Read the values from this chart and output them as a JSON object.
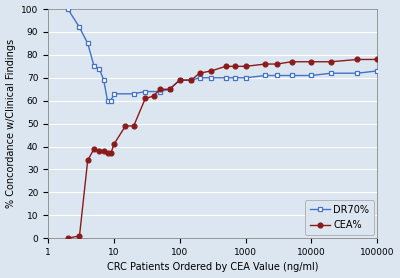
{
  "dr70_x": [
    2,
    3,
    4,
    5,
    6,
    7,
    8,
    9,
    10,
    20,
    30,
    50,
    70,
    100,
    150,
    200,
    300,
    500,
    700,
    1000,
    2000,
    3000,
    5000,
    10000,
    20000,
    50000,
    100000
  ],
  "dr70_y": [
    100,
    92,
    85,
    75,
    74,
    69,
    60,
    60,
    63,
    63,
    64,
    64,
    65,
    69,
    69,
    70,
    70,
    70,
    70,
    70,
    71,
    71,
    71,
    71,
    72,
    72,
    73
  ],
  "cea_x": [
    2,
    3,
    4,
    5,
    6,
    7,
    8,
    9,
    10,
    15,
    20,
    30,
    40,
    50,
    70,
    100,
    150,
    200,
    300,
    500,
    700,
    1000,
    2000,
    3000,
    5000,
    10000,
    20000,
    50000,
    100000
  ],
  "cea_y": [
    0,
    1,
    34,
    39,
    38,
    38,
    37,
    37,
    41,
    49,
    49,
    61,
    62,
    65,
    65,
    69,
    69,
    72,
    73,
    75,
    75,
    75,
    76,
    76,
    77,
    77,
    77,
    78,
    78
  ],
  "dr70_color": "#4472C4",
  "cea_color": "#8B1A1A",
  "dr70_label": "DR70%",
  "cea_label": "CEA%",
  "xlabel": "CRC Patients Ordered by CEA Value (ng/ml)",
  "ylabel": "% Concordance w/Clinical Findings",
  "xlim": [
    1,
    100000
  ],
  "ylim": [
    0,
    100
  ],
  "yticks": [
    0,
    10,
    20,
    30,
    40,
    50,
    60,
    70,
    80,
    90,
    100
  ],
  "plot_bg_color": "#dce6f1",
  "fig_bg_color": "#dce6f1",
  "grid_color": "#ffffff",
  "label_fontsize": 7,
  "tick_fontsize": 6.5,
  "legend_fontsize": 7
}
